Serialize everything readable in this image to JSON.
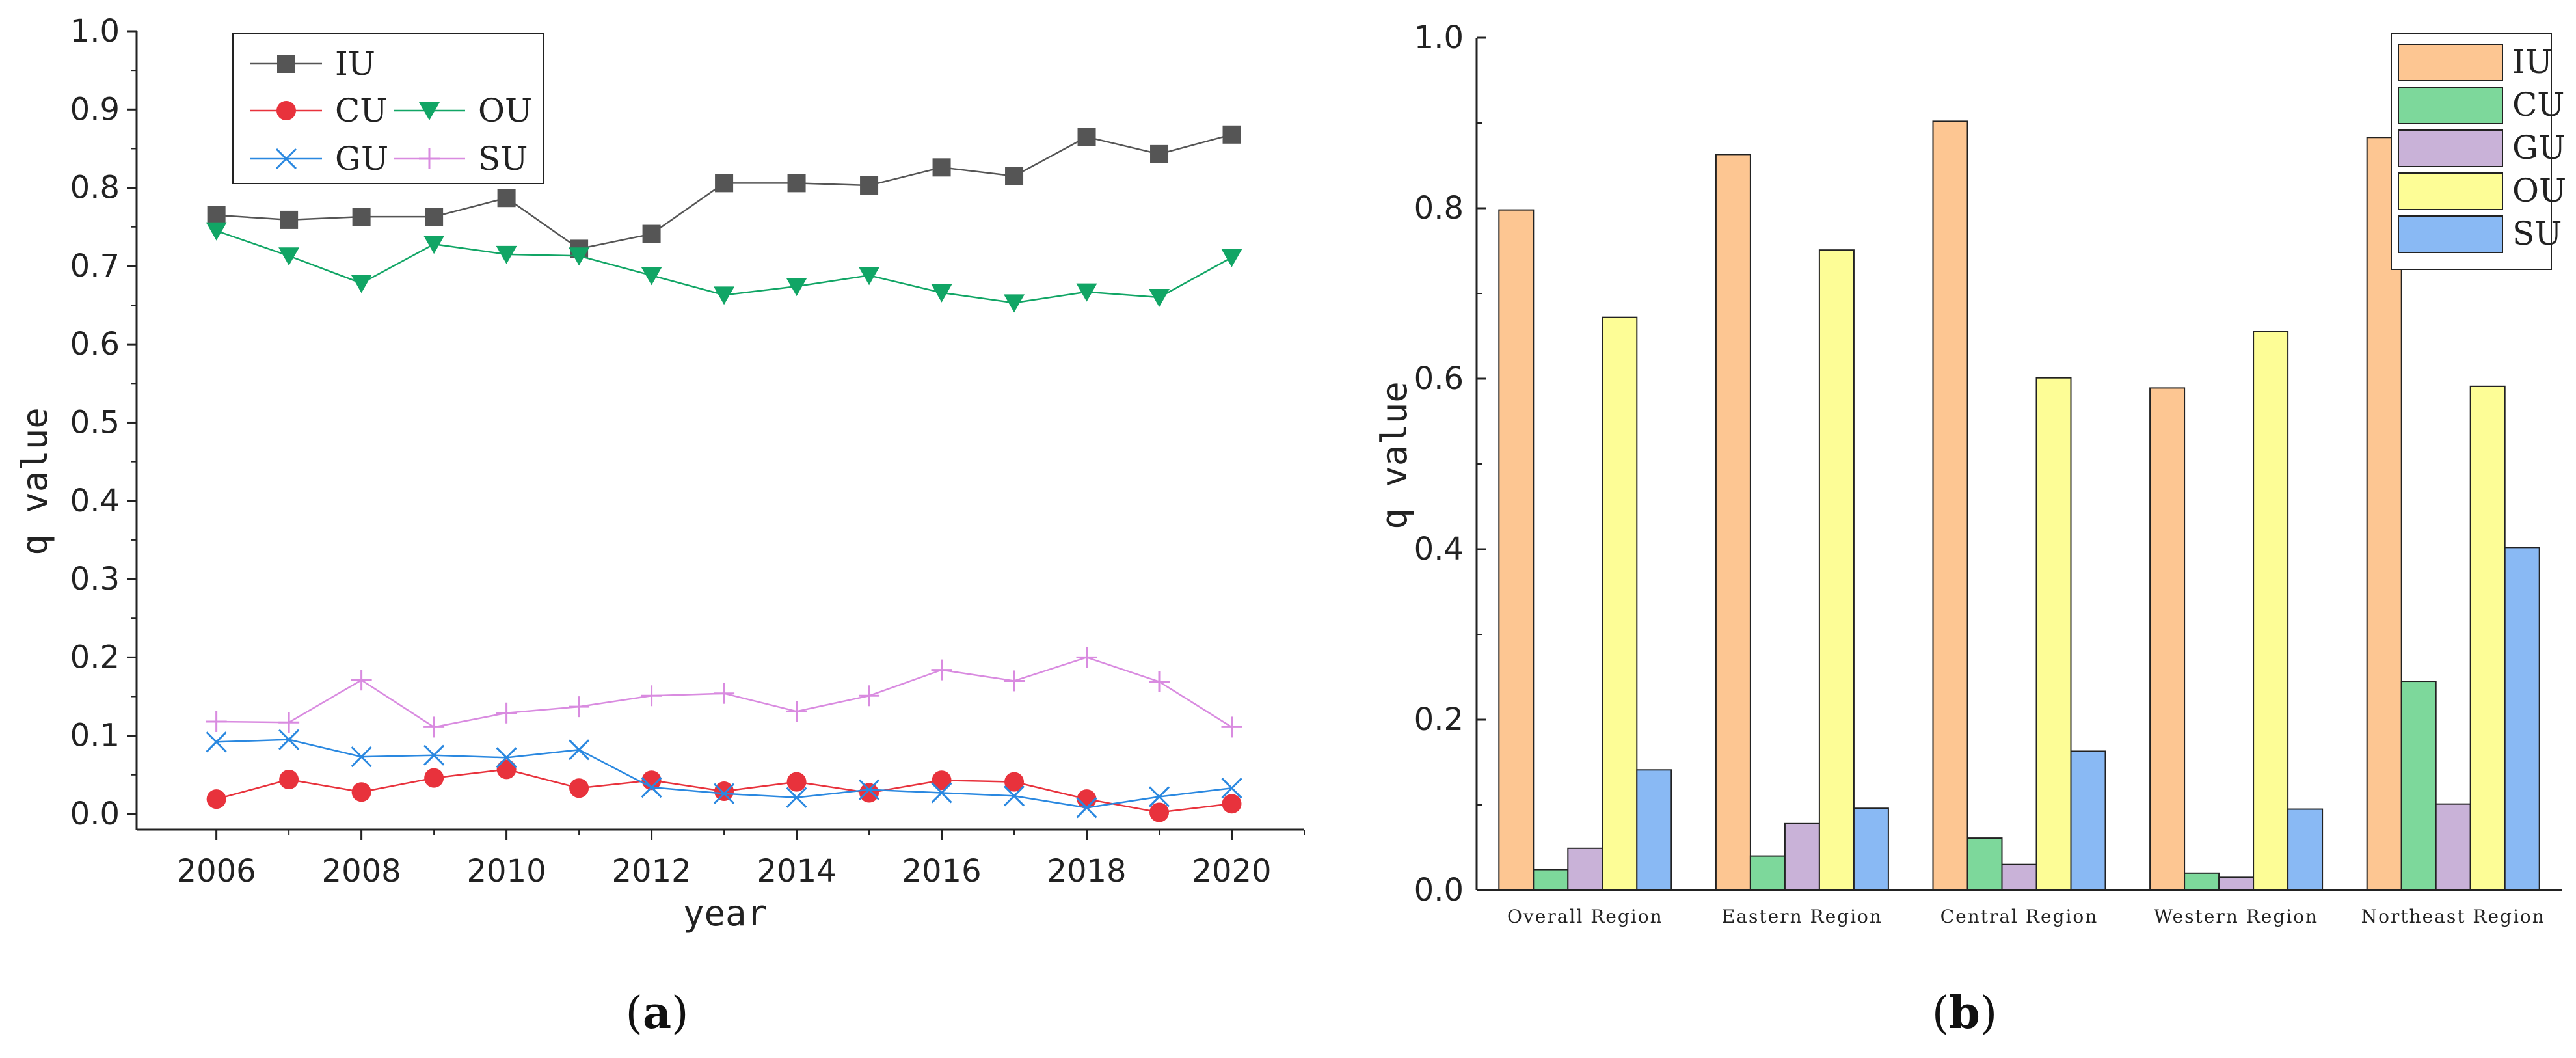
{
  "chart_data": [
    {
      "type": "line",
      "panel_label_open": "(",
      "panel_label_letter": "a",
      "panel_label_close": ")",
      "xlabel": "year",
      "ylabel": "q value",
      "xlim": [
        2004.9,
        2021.0
      ],
      "ylim": [
        -0.02,
        1.0
      ],
      "x_ticks": [
        2006,
        2008,
        2010,
        2012,
        2014,
        2016,
        2018,
        2020
      ],
      "x_tick_labels": [
        "2006",
        "2008",
        "2010",
        "2012",
        "2014",
        "2016",
        "2018",
        "2020"
      ],
      "y_ticks": [
        0.0,
        0.1,
        0.2,
        0.3,
        0.4,
        0.5,
        0.6,
        0.7,
        0.8,
        0.9,
        1.0
      ],
      "y_tick_labels": [
        "0.0",
        "0.1",
        "0.2",
        "0.3",
        "0.4",
        "0.5",
        "0.6",
        "0.7",
        "0.8",
        "0.9",
        "1.0"
      ],
      "x": [
        2006,
        2007,
        2008,
        2009,
        2010,
        2011,
        2012,
        2013,
        2014,
        2015,
        2016,
        2017,
        2018,
        2019,
        2020
      ],
      "legend_position": "top-left",
      "series": [
        {
          "name": "IU",
          "color": "#555555",
          "marker": "square",
          "values": [
            0.765,
            0.759,
            0.763,
            0.763,
            0.787,
            0.722,
            0.741,
            0.806,
            0.806,
            0.803,
            0.826,
            0.815,
            0.865,
            0.843,
            0.868
          ]
        },
        {
          "name": "CU",
          "color": "#e8323c",
          "marker": "circle",
          "values": [
            0.019,
            0.044,
            0.028,
            0.046,
            0.057,
            0.033,
            0.043,
            0.029,
            0.041,
            0.027,
            0.043,
            0.041,
            0.019,
            0.002,
            0.013
          ]
        },
        {
          "name": "OU",
          "color": "#11a565",
          "marker": "triangle-down",
          "values": [
            0.745,
            0.713,
            0.678,
            0.728,
            0.715,
            0.713,
            0.688,
            0.663,
            0.674,
            0.688,
            0.666,
            0.653,
            0.667,
            0.66,
            0.711
          ]
        },
        {
          "name": "GU",
          "color": "#2a88e0",
          "marker": "x",
          "values": [
            0.092,
            0.095,
            0.073,
            0.075,
            0.072,
            0.082,
            0.034,
            0.026,
            0.021,
            0.031,
            0.027,
            0.023,
            0.008,
            0.022,
            0.033
          ]
        },
        {
          "name": "SU",
          "color": "#d98be0",
          "marker": "plus",
          "values": [
            0.118,
            0.117,
            0.171,
            0.111,
            0.129,
            0.137,
            0.151,
            0.154,
            0.131,
            0.151,
            0.184,
            0.17,
            0.2,
            0.169,
            0.111
          ]
        }
      ]
    },
    {
      "type": "bar",
      "panel_label_open": "(",
      "panel_label_letter": "b",
      "panel_label_close": ")",
      "xlabel": "",
      "ylabel": "q value",
      "ylim": [
        0,
        1.0
      ],
      "y_ticks": [
        0.0,
        0.2,
        0.4,
        0.6,
        0.8,
        1.0
      ],
      "y_tick_labels": [
        "0.0",
        "0.2",
        "0.4",
        "0.6",
        "0.8",
        "1.0"
      ],
      "categories": [
        "Overall Region",
        "Eastern Region",
        "Central Region",
        "Western Region",
        "Northeast Region"
      ],
      "legend_position": "top-right",
      "series": [
        {
          "name": "IU",
          "color": "#fdc692",
          "values": [
            0.798,
            0.863,
            0.902,
            0.589,
            0.883
          ]
        },
        {
          "name": "CU",
          "color": "#7dd89b",
          "values": [
            0.024,
            0.04,
            0.061,
            0.02,
            0.245
          ]
        },
        {
          "name": "GU",
          "color": "#c9b2d8",
          "values": [
            0.049,
            0.078,
            0.03,
            0.015,
            0.101
          ]
        },
        {
          "name": "OU",
          "color": "#fdfd96",
          "values": [
            0.672,
            0.751,
            0.601,
            0.655,
            0.591
          ]
        },
        {
          "name": "SU",
          "color": "#89b9f4",
          "values": [
            0.141,
            0.096,
            0.163,
            0.095,
            0.402
          ]
        }
      ]
    }
  ]
}
